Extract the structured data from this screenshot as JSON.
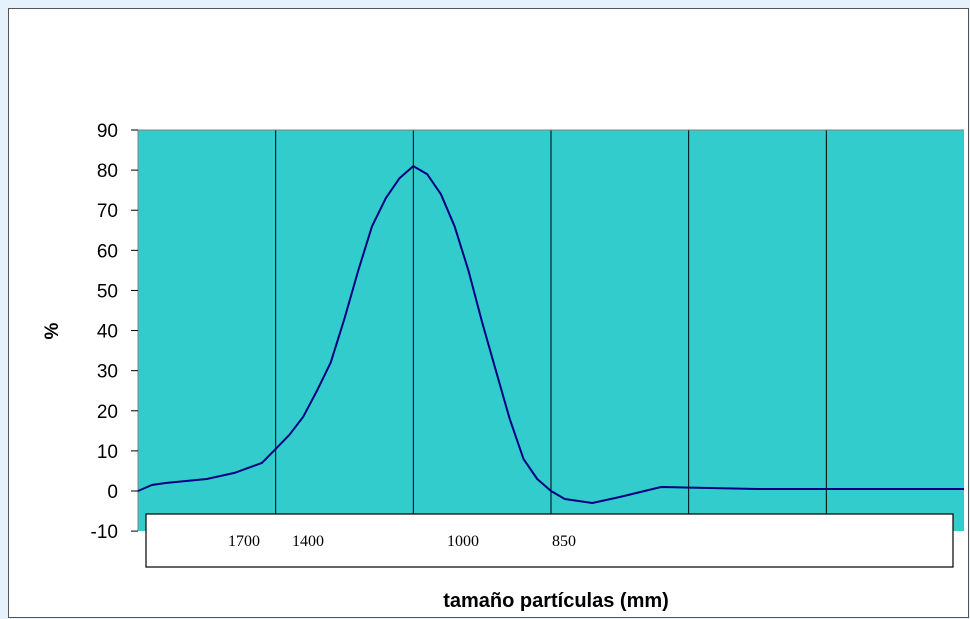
{
  "chart_data": {
    "type": "line",
    "title": "",
    "xlabel": "tamaño partículas (mm)",
    "ylabel": "%",
    "ylim": [
      -10,
      90
    ],
    "yticks": [
      90,
      80,
      70,
      60,
      50,
      40,
      30,
      20,
      10,
      0,
      -10
    ],
    "xtick_labels": [
      "1700",
      "1400",
      "1000",
      "850"
    ],
    "grid": "vertical",
    "colors": {
      "plot_bg": "#33cccc",
      "line": "#000080",
      "page_bg": "#e6f2fb"
    },
    "series": [
      {
        "points": [
          [
            0,
            0
          ],
          [
            0.1,
            1.5
          ],
          [
            0.2,
            2.0
          ],
          [
            0.5,
            3.0
          ],
          [
            0.7,
            4.5
          ],
          [
            0.9,
            7.0
          ],
          [
            1.0,
            10.5
          ],
          [
            1.1,
            14.0
          ],
          [
            1.2,
            18.5
          ],
          [
            1.3,
            25.0
          ],
          [
            1.4,
            32.0
          ],
          [
            1.5,
            43.0
          ],
          [
            1.6,
            55.0
          ],
          [
            1.7,
            66.0
          ],
          [
            1.8,
            73.0
          ],
          [
            1.9,
            78.0
          ],
          [
            2.0,
            81.0
          ],
          [
            2.1,
            79.0
          ],
          [
            2.2,
            74.0
          ],
          [
            2.3,
            66.0
          ],
          [
            2.4,
            55.0
          ],
          [
            2.5,
            42.0
          ],
          [
            2.6,
            30.0
          ],
          [
            2.7,
            18.0
          ],
          [
            2.8,
            8.0
          ],
          [
            2.9,
            3.0
          ],
          [
            3.0,
            0.0
          ],
          [
            3.1,
            -2.0
          ],
          [
            3.3,
            -3.0
          ],
          [
            3.5,
            -1.5
          ],
          [
            3.8,
            1.0
          ],
          [
            4.5,
            0.5
          ],
          [
            5.0,
            0.5
          ],
          [
            6.0,
            0.5
          ]
        ]
      }
    ]
  }
}
